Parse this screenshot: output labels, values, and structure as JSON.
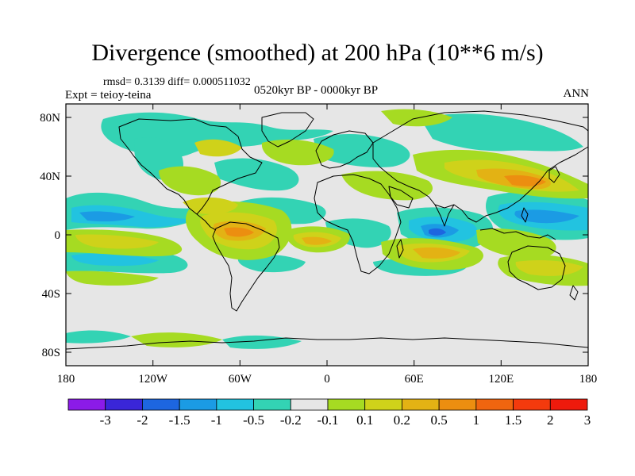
{
  "title": "Divergence (smoothed) at 200 hPa (10**6 m/s)",
  "stats": "rmsd= 0.3139 diff= 0.000511032",
  "experiment": "Expt = teioy-teina",
  "period": "0520kyr BP - 0000kyr BP",
  "season": "ANN",
  "lat_ticks": [
    "80N",
    "40N",
    "0",
    "40S",
    "80S"
  ],
  "lon_ticks": [
    "180",
    "120W",
    "60W",
    "0",
    "60E",
    "120E",
    "180"
  ],
  "colorbar": {
    "labels": [
      "-3",
      "-2",
      "-1.5",
      "-1",
      "-0.5",
      "-0.2",
      "-0.1",
      "0.1",
      "0.2",
      "0.5",
      "1",
      "1.5",
      "2",
      "3"
    ],
    "colors": [
      "#8b1be8",
      "#3a26d8",
      "#1d66e0",
      "#1b9be4",
      "#22c3e0",
      "#33d3b4",
      "#e6e6e6",
      "#a6db22",
      "#cfd21a",
      "#e3b214",
      "#ec8e10",
      "#f0650f",
      "#f43a0d",
      "#ee1a0c"
    ]
  },
  "field_colors": {
    "neutral": "#e6e6e6",
    "neg_weak": "#33d3b4",
    "neg_mid": "#22c3e0",
    "neg_strong": "#1b9be4",
    "neg_max": "#1d66e0",
    "pos_weak": "#a6db22",
    "pos_mid": "#cfd21a",
    "pos_strong": "#e3b214",
    "pos_max": "#ec8e10"
  }
}
